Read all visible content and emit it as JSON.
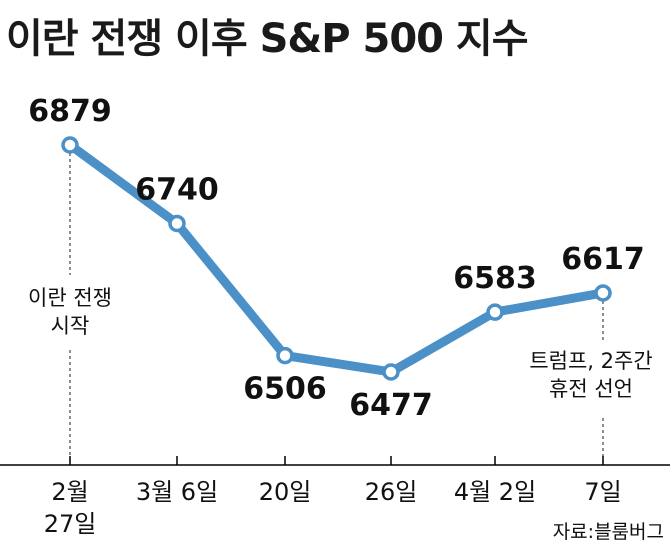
{
  "title": "이란 전쟁 이후 S&P 500 지수",
  "source": "자료:블룸버그",
  "colors": {
    "line": "#4b90c7",
    "marker_fill": "#ffffff",
    "axis": "#000000",
    "guide": "#444444"
  },
  "chart_data": {
    "type": "line",
    "title": "이란 전쟁 이후 S&P 500 지수",
    "xlabel": "",
    "ylabel": "",
    "categories": [
      [
        "2월",
        "27일"
      ],
      [
        "3월 6일"
      ],
      [
        "20일"
      ],
      [
        "26일"
      ],
      [
        "4월 2일"
      ],
      [
        "7일"
      ]
    ],
    "series": [
      {
        "values": [
          6879,
          6740,
          6506,
          6477,
          6583,
          6617
        ]
      }
    ],
    "data_labels": [
      "6879",
      "6740",
      "6506",
      "6477",
      "6583",
      "6617"
    ],
    "annotations": [
      {
        "point_index": 0,
        "lines": [
          "이란 전쟁",
          "시작"
        ]
      },
      {
        "point_index": 5,
        "lines": [
          "트럼프, 2주간",
          "휴전 선언"
        ]
      }
    ],
    "grid": false,
    "legend": "none"
  }
}
